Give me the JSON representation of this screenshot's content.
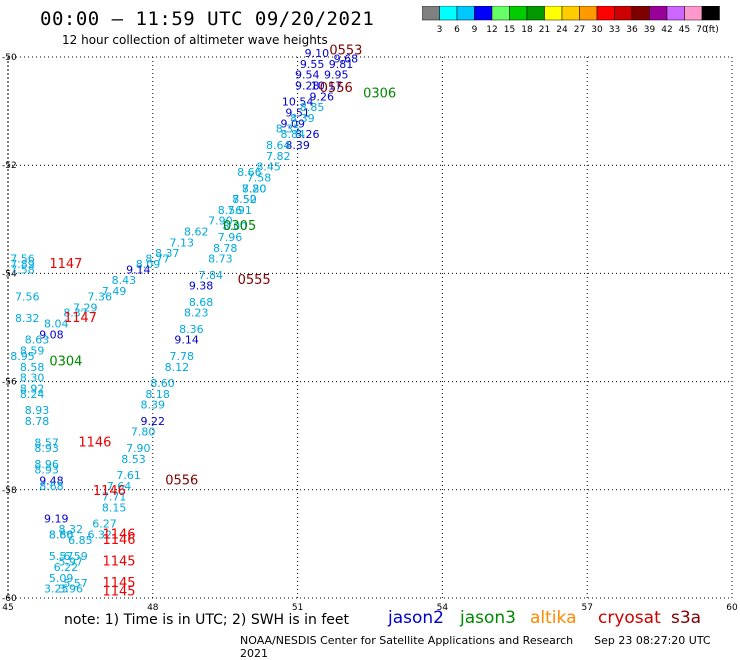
{
  "header": {
    "title": "00:00 – 11:59 UTC 09/20/2021",
    "subtitle": "12 hour collection of altimeter wave heights"
  },
  "colorbar": {
    "labels": [
      "3",
      "6",
      "9",
      "12",
      "15",
      "18",
      "21",
      "24",
      "27",
      "30",
      "33",
      "36",
      "39",
      "42",
      "45",
      "70"
    ],
    "unit": "(ft)",
    "colors": [
      "#808080",
      "#00ffff",
      "#00c8ff",
      "#0000ff",
      "#66ff66",
      "#00cc00",
      "#009900",
      "#ffff00",
      "#ffcc00",
      "#ff9900",
      "#ff0000",
      "#cc0000",
      "#800000",
      "#990099",
      "#cc66ff",
      "#ff99cc",
      "#000000"
    ]
  },
  "footer": {
    "note": "note: 1) Time is in UTC; 2) SWH is in feet",
    "missions": [
      {
        "name": "jason2",
        "color": "#0000cc"
      },
      {
        "name": "jason3",
        "color": "#008800"
      },
      {
        "name": "altika",
        "color": "#ff8800"
      },
      {
        "name": "cryosat",
        "color": "#cc0000"
      },
      {
        "name": "s3a",
        "color": "#800000"
      }
    ],
    "credit": "NOAA/NESDIS Center for Satellite Applications and Research",
    "timestamp": "Sep 23 08:27:20 UTC 2021"
  },
  "chart_data": {
    "type": "scatter",
    "xlim": [
      45,
      60
    ],
    "ylim": [
      -60,
      -50
    ],
    "x_ticks": [
      45,
      48,
      51,
      54,
      57,
      60
    ],
    "y_ticks": [
      -50,
      -52,
      -54,
      -56,
      -58,
      -60
    ],
    "grid": true,
    "points": [
      {
        "x": 51.4,
        "y": -50.0,
        "label": "9.10",
        "color": "#0000cc"
      },
      {
        "x": 51.3,
        "y": -50.2,
        "label": "9.55",
        "color": "#0000cc"
      },
      {
        "x": 51.2,
        "y": -50.4,
        "label": "9.54",
        "color": "#0000cc"
      },
      {
        "x": 51.2,
        "y": -50.6,
        "label": "9.28",
        "color": "#0000cc"
      },
      {
        "x": 51.0,
        "y": -50.9,
        "label": "10.54",
        "color": "#0000cc"
      },
      {
        "x": 51.0,
        "y": -51.1,
        "label": "9.51",
        "color": "#0000cc"
      },
      {
        "x": 50.9,
        "y": -51.3,
        "label": "9.09",
        "color": "#0000cc"
      },
      {
        "x": 51.2,
        "y": -51.5,
        "label": "8.26",
        "color": "#0000cc"
      },
      {
        "x": 51.0,
        "y": -51.7,
        "label": "8.39",
        "color": "#0000cc"
      },
      {
        "x": 52.0,
        "y": -50.1,
        "label": "9.68",
        "color": "#0000cc"
      },
      {
        "x": 51.9,
        "y": -50.2,
        "label": "9.81",
        "color": "#0000cc"
      },
      {
        "x": 51.8,
        "y": -50.4,
        "label": "9.95",
        "color": "#0000cc"
      },
      {
        "x": 51.6,
        "y": -50.6,
        "label": "10.17",
        "color": "#0000cc"
      },
      {
        "x": 51.5,
        "y": -50.8,
        "label": "9.26",
        "color": "#0000cc"
      },
      {
        "x": 51.3,
        "y": -51.0,
        "label": "8.85",
        "color": "#00aadd"
      },
      {
        "x": 51.1,
        "y": -51.2,
        "label": "8.39",
        "color": "#00aadd"
      },
      {
        "x": 50.8,
        "y": -51.4,
        "label": "8.35",
        "color": "#00aadd"
      },
      {
        "x": 50.9,
        "y": -51.5,
        "label": "8.84",
        "color": "#00aadd"
      },
      {
        "x": 50.6,
        "y": -51.7,
        "label": "8.64",
        "color": "#00aadd"
      },
      {
        "x": 50.6,
        "y": -51.9,
        "label": "7.82",
        "color": "#00aadd"
      },
      {
        "x": 50.4,
        "y": -52.1,
        "label": "8.45",
        "color": "#00aadd"
      },
      {
        "x": 50.2,
        "y": -52.3,
        "label": "7.58",
        "color": "#00aadd"
      },
      {
        "x": 50.1,
        "y": -52.5,
        "label": "7.80",
        "color": "#00aadd"
      },
      {
        "x": 49.9,
        "y": -52.7,
        "label": "7.52",
        "color": "#00aadd"
      },
      {
        "x": 49.6,
        "y": -52.9,
        "label": "8.56",
        "color": "#00aadd"
      },
      {
        "x": 49.4,
        "y": -53.1,
        "label": "7.90",
        "color": "#00aadd"
      },
      {
        "x": 48.9,
        "y": -53.3,
        "label": "8.62",
        "color": "#00aadd"
      },
      {
        "x": 48.6,
        "y": -53.5,
        "label": "7.13",
        "color": "#00aadd"
      },
      {
        "x": 48.3,
        "y": -53.7,
        "label": "8.37",
        "color": "#00aadd"
      },
      {
        "x": 48.1,
        "y": -53.8,
        "label": "8.77",
        "color": "#00aadd"
      },
      {
        "x": 47.9,
        "y": -53.9,
        "label": "8.09",
        "color": "#00aadd"
      },
      {
        "x": 47.7,
        "y": -54.0,
        "label": "9.14",
        "color": "#0000cc"
      },
      {
        "x": 47.4,
        "y": -54.2,
        "label": "8.43",
        "color": "#00aadd"
      },
      {
        "x": 47.2,
        "y": -54.4,
        "label": "7.49",
        "color": "#00aadd"
      },
      {
        "x": 46.9,
        "y": -54.5,
        "label": "7.36",
        "color": "#00aadd"
      },
      {
        "x": 46.6,
        "y": -54.7,
        "label": "7.29",
        "color": "#00aadd"
      },
      {
        "x": 46.4,
        "y": -54.8,
        "label": "8.37",
        "color": "#00aadd"
      },
      {
        "x": 46.0,
        "y": -55.0,
        "label": "8.04",
        "color": "#00aadd"
      },
      {
        "x": 45.9,
        "y": -55.2,
        "label": "9.08",
        "color": "#0000cc"
      },
      {
        "x": 45.6,
        "y": -55.3,
        "label": "8.63",
        "color": "#00aadd"
      },
      {
        "x": 45.5,
        "y": -55.5,
        "label": "8.59",
        "color": "#00aadd"
      },
      {
        "x": 45.3,
        "y": -55.6,
        "label": "8.95",
        "color": "#00aadd"
      },
      {
        "x": 45.5,
        "y": -55.8,
        "label": "8.58",
        "color": "#00aadd"
      },
      {
        "x": 45.5,
        "y": -56.0,
        "label": "8.30",
        "color": "#00aadd"
      },
      {
        "x": 45.5,
        "y": -56.2,
        "label": "8.92",
        "color": "#00aadd"
      },
      {
        "x": 45.5,
        "y": -56.3,
        "label": "8.24",
        "color": "#00aadd"
      },
      {
        "x": 45.6,
        "y": -56.6,
        "label": "8.93",
        "color": "#00aadd"
      },
      {
        "x": 45.6,
        "y": -56.8,
        "label": "8.78",
        "color": "#00aadd"
      },
      {
        "x": 45.3,
        "y": -53.8,
        "label": "7.56",
        "color": "#00aadd"
      },
      {
        "x": 45.3,
        "y": -53.9,
        "label": "7.89",
        "color": "#00aadd"
      },
      {
        "x": 45.3,
        "y": -54.0,
        "label": "7.58",
        "color": "#00aadd"
      },
      {
        "x": 45.4,
        "y": -54.5,
        "label": "7.56",
        "color": "#00aadd"
      },
      {
        "x": 45.4,
        "y": -54.9,
        "label": "8.32",
        "color": "#00aadd"
      },
      {
        "x": 45.8,
        "y": -57.2,
        "label": "8.57",
        "color": "#00aadd"
      },
      {
        "x": 45.8,
        "y": -57.3,
        "label": "8.93",
        "color": "#00aadd"
      },
      {
        "x": 45.8,
        "y": -57.6,
        "label": "8.96",
        "color": "#00aadd"
      },
      {
        "x": 45.8,
        "y": -57.7,
        "label": "8.93",
        "color": "#00aadd"
      },
      {
        "x": 45.9,
        "y": -57.9,
        "label": "9.48",
        "color": "#0000cc"
      },
      {
        "x": 45.9,
        "y": -58.0,
        "label": "8.68",
        "color": "#00aadd"
      },
      {
        "x": 46.0,
        "y": -58.6,
        "label": "9.19",
        "color": "#0000cc"
      },
      {
        "x": 46.3,
        "y": -58.8,
        "label": "8.32",
        "color": "#00aadd"
      },
      {
        "x": 46.1,
        "y": -58.9,
        "label": "8.66",
        "color": "#00aadd"
      },
      {
        "x": 46.1,
        "y": -58.9,
        "label": "8.80",
        "color": "#00aadd"
      },
      {
        "x": 46.5,
        "y": -59.0,
        "label": "6.85",
        "color": "#00aadd"
      },
      {
        "x": 46.4,
        "y": -59.3,
        "label": "6.59",
        "color": "#00aadd"
      },
      {
        "x": 46.1,
        "y": -59.3,
        "label": "5.57",
        "color": "#00aadd"
      },
      {
        "x": 46.3,
        "y": -59.4,
        "label": "5.97",
        "color": "#00aadd"
      },
      {
        "x": 46.2,
        "y": -59.5,
        "label": "6.22",
        "color": "#00aadd"
      },
      {
        "x": 46.1,
        "y": -59.7,
        "label": "5.09",
        "color": "#00aadd"
      },
      {
        "x": 46.4,
        "y": -59.8,
        "label": "5.57",
        "color": "#00aadd"
      },
      {
        "x": 46.0,
        "y": -59.9,
        "label": "3.25",
        "color": "#00aadd"
      },
      {
        "x": 46.3,
        "y": -59.9,
        "label": "3.96",
        "color": "#00aadd"
      },
      {
        "x": 50.0,
        "y": -52.2,
        "label": "8.66",
        "color": "#00aadd"
      },
      {
        "x": 50.1,
        "y": -52.5,
        "label": "8.20",
        "color": "#00aadd"
      },
      {
        "x": 49.9,
        "y": -52.7,
        "label": "8.50",
        "color": "#00aadd"
      },
      {
        "x": 49.8,
        "y": -52.9,
        "label": "7.91",
        "color": "#00aadd"
      },
      {
        "x": 49.7,
        "y": -53.2,
        "label": "8.00",
        "color": "#00aadd"
      },
      {
        "x": 49.6,
        "y": -53.4,
        "label": "7.96",
        "color": "#00aadd"
      },
      {
        "x": 49.5,
        "y": -53.6,
        "label": "8.78",
        "color": "#00aadd"
      },
      {
        "x": 49.4,
        "y": -53.8,
        "label": "8.73",
        "color": "#00aadd"
      },
      {
        "x": 49.2,
        "y": -54.1,
        "label": "7.84",
        "color": "#00aadd"
      },
      {
        "x": 49.0,
        "y": -54.3,
        "label": "9.38",
        "color": "#0000cc"
      },
      {
        "x": 49.0,
        "y": -54.6,
        "label": "8.68",
        "color": "#00aadd"
      },
      {
        "x": 48.9,
        "y": -54.8,
        "label": "8.23",
        "color": "#00aadd"
      },
      {
        "x": 48.8,
        "y": -55.1,
        "label": "8.36",
        "color": "#00aadd"
      },
      {
        "x": 48.7,
        "y": -55.3,
        "label": "9.14",
        "color": "#0000cc"
      },
      {
        "x": 48.6,
        "y": -55.6,
        "label": "7.78",
        "color": "#00aadd"
      },
      {
        "x": 48.5,
        "y": -55.8,
        "label": "8.12",
        "color": "#00aadd"
      },
      {
        "x": 48.2,
        "y": -56.1,
        "label": "8.60",
        "color": "#00aadd"
      },
      {
        "x": 48.1,
        "y": -56.3,
        "label": "8.18",
        "color": "#00aadd"
      },
      {
        "x": 48.0,
        "y": -56.5,
        "label": "8.39",
        "color": "#00aadd"
      },
      {
        "x": 48.0,
        "y": -56.8,
        "label": "9.22",
        "color": "#0000cc"
      },
      {
        "x": 47.8,
        "y": -57.0,
        "label": "7.80",
        "color": "#00aadd"
      },
      {
        "x": 47.7,
        "y": -57.3,
        "label": "7.90",
        "color": "#00aadd"
      },
      {
        "x": 47.6,
        "y": -57.5,
        "label": "8.53",
        "color": "#00aadd"
      },
      {
        "x": 47.5,
        "y": -57.8,
        "label": "7.61",
        "color": "#00aadd"
      },
      {
        "x": 47.3,
        "y": -58.0,
        "label": "7.64",
        "color": "#00aadd"
      },
      {
        "x": 47.2,
        "y": -58.2,
        "label": "7.71",
        "color": "#00aadd"
      },
      {
        "x": 47.2,
        "y": -58.4,
        "label": "8.15",
        "color": "#00aadd"
      },
      {
        "x": 47.0,
        "y": -58.7,
        "label": "6.27",
        "color": "#00aadd"
      },
      {
        "x": 46.9,
        "y": -58.9,
        "label": "6.32",
        "color": "#00aadd"
      }
    ],
    "annotations": [
      {
        "x": 52.0,
        "y": -49.95,
        "label": "0553",
        "color": "#800000"
      },
      {
        "x": 51.8,
        "y": -50.65,
        "label": "0556",
        "color": "#800000"
      },
      {
        "x": 52.7,
        "y": -50.75,
        "label": "0306",
        "color": "#008800"
      },
      {
        "x": 49.8,
        "y": -53.2,
        "label": "0305",
        "color": "#008800"
      },
      {
        "x": 50.1,
        "y": -54.2,
        "label": "0555",
        "color": "#800000"
      },
      {
        "x": 48.6,
        "y": -57.9,
        "label": "0556",
        "color": "#800000"
      },
      {
        "x": 46.2,
        "y": -55.7,
        "label": "0304",
        "color": "#008800"
      },
      {
        "x": 46.2,
        "y": -53.9,
        "label": "1147",
        "color": "#ee0000"
      },
      {
        "x": 46.5,
        "y": -54.9,
        "label": "1147",
        "color": "#ee0000"
      },
      {
        "x": 46.8,
        "y": -57.2,
        "label": "1146",
        "color": "#ee0000"
      },
      {
        "x": 47.1,
        "y": -58.1,
        "label": "1146",
        "color": "#ee0000"
      },
      {
        "x": 47.3,
        "y": -58.9,
        "label": "1146",
        "color": "#ee0000"
      },
      {
        "x": 47.3,
        "y": -59.0,
        "label": "1146",
        "color": "#ee0000"
      },
      {
        "x": 47.3,
        "y": -59.4,
        "label": "1145",
        "color": "#ee0000"
      },
      {
        "x": 47.3,
        "y": -59.8,
        "label": "1145",
        "color": "#ee0000"
      },
      {
        "x": 47.3,
        "y": -59.95,
        "label": "1145",
        "color": "#ee0000"
      }
    ]
  }
}
